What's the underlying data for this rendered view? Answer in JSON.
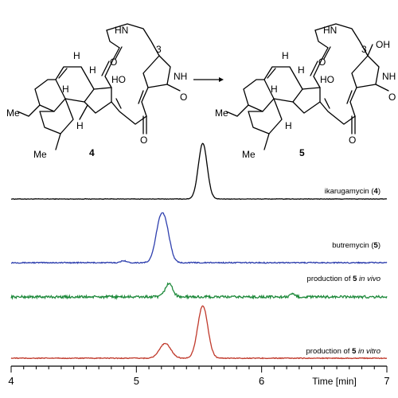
{
  "scheme": {
    "compound_left": "4",
    "compound_right": "5",
    "atoms": {
      "nh": "NH",
      "hn": "HN",
      "ho": "HO",
      "oh": "OH",
      "o": "O",
      "h": "H",
      "me": "Me",
      "pos3": "3"
    }
  },
  "chart_data": {
    "type": "line",
    "xlabel": "Time [min]",
    "xlim": [
      4,
      7
    ],
    "xticks": [
      "4",
      "5",
      "6",
      "7"
    ],
    "series": [
      {
        "name": "ikarugamycin (4)",
        "name_parts": [
          "ikarugamycin (",
          "4",
          ")"
        ],
        "color": "#000000",
        "noise": 0.004,
        "peaks": [
          {
            "x": 5.53,
            "height": 1.0,
            "width": 0.035
          }
        ]
      },
      {
        "name": "butremycin (5)",
        "name_parts": [
          "butremycin (",
          "5",
          ")"
        ],
        "color": "#2e3fae",
        "noise": 0.01,
        "peaks": [
          {
            "x": 5.19,
            "height": 0.72,
            "width": 0.038
          },
          {
            "x": 5.24,
            "height": 0.45,
            "width": 0.035
          },
          {
            "x": 4.9,
            "height": 0.04,
            "width": 0.02
          }
        ]
      },
      {
        "name": "production of 5 in vivo",
        "name_parts": [
          "production of ",
          "5",
          " in vivo"
        ],
        "color": "#1f8a3c",
        "noise": 0.04,
        "peaks": [
          {
            "x": 5.26,
            "height": 0.42,
            "width": 0.03
          },
          {
            "x": 6.25,
            "height": 0.08,
            "width": 0.02
          }
        ]
      },
      {
        "name": "production of 5 in vitro",
        "name_parts": [
          "production of ",
          "5",
          " in vitro"
        ],
        "color": "#c0392b",
        "noise": 0.008,
        "peaks": [
          {
            "x": 5.23,
            "height": 0.28,
            "width": 0.045
          },
          {
            "x": 5.53,
            "height": 1.0,
            "width": 0.04
          }
        ]
      }
    ]
  }
}
